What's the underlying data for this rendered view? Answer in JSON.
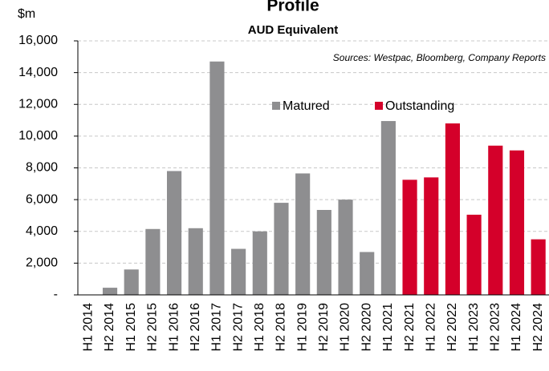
{
  "chart_data": {
    "type": "bar",
    "title": "Profile",
    "subtitle": "AUD Equivalent",
    "annotation": "Sources: Westpac, Bloomberg, Company Reports",
    "y_unit": "$m",
    "categories": [
      "H1 2014",
      "H2 2014",
      "H1 2015",
      "H2 2015",
      "H1 2016",
      "H2 2016",
      "H1 2017",
      "H2 2017",
      "H1 2018",
      "H2 2018",
      "H1 2019",
      "H2 2019",
      "H1 2020",
      "H2 2020",
      "H1 2021",
      "H2 2021",
      "H1 2022",
      "H2 2022",
      "H1 2023",
      "H2 2023",
      "H1 2024",
      "H2 2024"
    ],
    "series": [
      {
        "name": "Matured",
        "color": "#8e8e90",
        "values": [
          0,
          450,
          1600,
          4150,
          7800,
          4200,
          14700,
          2900,
          4000,
          5800,
          7650,
          5350,
          6000,
          2700,
          10950,
          null,
          null,
          null,
          null,
          null,
          null,
          null
        ]
      },
      {
        "name": "Outstanding",
        "color": "#d4002a",
        "values": [
          null,
          null,
          null,
          null,
          null,
          null,
          null,
          null,
          null,
          null,
          null,
          null,
          null,
          null,
          null,
          7250,
          7400,
          10800,
          5050,
          9400,
          9100,
          3500
        ]
      }
    ],
    "ylim": [
      0,
      16000
    ],
    "yticks": [
      {
        "value": 0,
        "label": "-"
      },
      {
        "value": 2000,
        "label": "2,000"
      },
      {
        "value": 4000,
        "label": "4,000"
      },
      {
        "value": 6000,
        "label": "6,000"
      },
      {
        "value": 8000,
        "label": "8,000"
      },
      {
        "value": 10000,
        "label": "10,000"
      },
      {
        "value": 12000,
        "label": "12,000"
      },
      {
        "value": 14000,
        "label": "14,000"
      },
      {
        "value": 16000,
        "label": "16,000"
      }
    ],
    "grid": true
  }
}
